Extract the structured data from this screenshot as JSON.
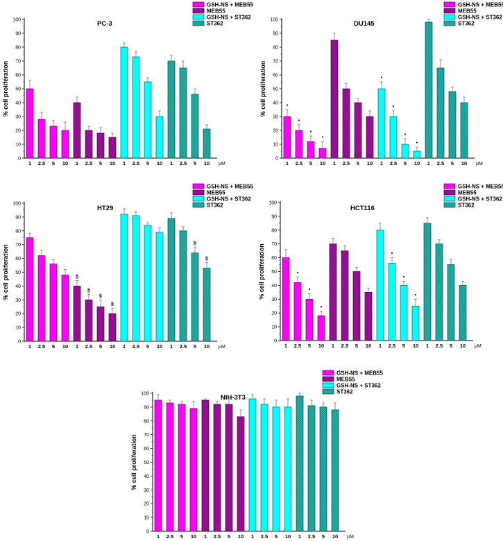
{
  "figure": {
    "ylabel": "% cell proliferation",
    "unit": "µM",
    "legend": [
      {
        "label": "GSH-NS + MEB55",
        "color": "#ff00ff",
        "pattern": "solid"
      },
      {
        "label": "MEB55",
        "color": "#a3109f",
        "pattern": "hatched"
      },
      {
        "label": "GSH-NS + ST362",
        "color": "#00ffff",
        "pattern": "solid"
      },
      {
        "label": "ST362",
        "color": "#1fb3ab",
        "pattern": "hatched"
      }
    ]
  },
  "chart_data": [
    {
      "type": "bar",
      "title": "PC-3",
      "xlabel": "µM",
      "ylabel": "% cell proliferation",
      "ylim": [
        0,
        100
      ],
      "yticks": [
        0,
        10,
        20,
        30,
        40,
        50,
        60,
        70,
        80,
        90,
        100
      ],
      "categories": [
        "1",
        "2.5",
        "5",
        "10"
      ],
      "legend_position": "top-right",
      "series": [
        {
          "name": "GSH-NS + MEB55",
          "values": [
            50,
            28,
            23,
            20
          ],
          "errors": [
            6,
            5,
            4,
            6
          ],
          "marks": [
            "",
            "",
            "",
            ""
          ]
        },
        {
          "name": "MEB55",
          "values": [
            40,
            20,
            18,
            15
          ],
          "errors": [
            4,
            3,
            4,
            3
          ],
          "marks": [
            "",
            "",
            "",
            ""
          ]
        },
        {
          "name": "GSH-NS + ST362",
          "values": [
            80,
            73,
            55,
            30
          ],
          "errors": [
            3,
            4,
            3,
            4
          ],
          "marks": [
            "",
            "",
            "",
            ""
          ]
        },
        {
          "name": "ST362",
          "values": [
            70,
            65,
            46,
            21
          ],
          "errors": [
            4,
            5,
            4,
            3
          ],
          "marks": [
            "",
            "",
            "",
            ""
          ]
        }
      ]
    },
    {
      "type": "bar",
      "title": "DU145",
      "xlabel": "µM",
      "ylabel": "% cell proliferation",
      "ylim": [
        0,
        100
      ],
      "yticks": [
        0,
        10,
        20,
        30,
        40,
        50,
        60,
        70,
        80,
        90,
        100
      ],
      "categories": [
        "1",
        "2.5",
        "5",
        "10"
      ],
      "legend_position": "top-right",
      "series": [
        {
          "name": "GSH-NS + MEB55",
          "values": [
            30,
            20,
            12,
            7
          ],
          "errors": [
            5,
            4,
            4,
            5
          ],
          "marks": [
            "*",
            "*",
            "*",
            "*"
          ]
        },
        {
          "name": "MEB55",
          "values": [
            85,
            50,
            40,
            30
          ],
          "errors": [
            5,
            4,
            3,
            4
          ],
          "marks": [
            "",
            "",
            "",
            ""
          ]
        },
        {
          "name": "GSH-NS + ST362",
          "values": [
            50,
            30,
            10,
            5
          ],
          "errors": [
            5,
            4,
            4,
            3
          ],
          "marks": [
            "*",
            "*",
            "*",
            "*"
          ]
        },
        {
          "name": "ST362",
          "values": [
            98,
            65,
            48,
            40
          ],
          "errors": [
            2,
            6,
            3,
            4
          ],
          "marks": [
            "",
            "",
            "",
            ""
          ]
        }
      ]
    },
    {
      "type": "bar",
      "title": "HT29",
      "xlabel": "µM",
      "ylabel": "% cell proliferation",
      "ylim": [
        0,
        100
      ],
      "yticks": [
        0,
        10,
        20,
        30,
        40,
        50,
        60,
        70,
        80,
        90,
        100
      ],
      "categories": [
        "1",
        "2.5",
        "5",
        "10"
      ],
      "legend_position": "top-right",
      "series": [
        {
          "name": "GSH-NS + MEB55",
          "values": [
            75,
            62,
            56,
            48
          ],
          "errors": [
            3,
            4,
            3,
            4
          ],
          "marks": [
            "",
            "",
            "",
            ""
          ]
        },
        {
          "name": "MEB55",
          "values": [
            40,
            30,
            25,
            20
          ],
          "errors": [
            4,
            4,
            5,
            4
          ],
          "marks": [
            "§",
            "§",
            "§",
            "§"
          ]
        },
        {
          "name": "GSH-NS + ST362",
          "values": [
            92,
            91,
            84,
            79
          ],
          "errors": [
            4,
            3,
            2,
            3
          ],
          "marks": [
            "",
            "",
            "",
            ""
          ]
        },
        {
          "name": "ST362",
          "values": [
            89,
            80,
            64,
            53
          ],
          "errors": [
            4,
            3,
            4,
            4
          ],
          "marks": [
            "",
            "",
            "§",
            "§"
          ]
        }
      ]
    },
    {
      "type": "bar",
      "title": "HCT116",
      "xlabel": "µM",
      "ylabel": "% cell proliferation",
      "ylim": [
        0,
        100
      ],
      "yticks": [
        0,
        10,
        20,
        30,
        40,
        50,
        60,
        70,
        80,
        90,
        100
      ],
      "categories": [
        "1",
        "2.5",
        "5",
        "10"
      ],
      "legend_position": "top-right",
      "series": [
        {
          "name": "GSH-NS + MEB55",
          "values": [
            60,
            42,
            30,
            18
          ],
          "errors": [
            6,
            4,
            4,
            3
          ],
          "marks": [
            "",
            "*",
            "*",
            "*"
          ]
        },
        {
          "name": "MEB55",
          "values": [
            70,
            65,
            50,
            35
          ],
          "errors": [
            4,
            4,
            3,
            3
          ],
          "marks": [
            "",
            "",
            "",
            ""
          ]
        },
        {
          "name": "GSH-NS + ST362",
          "values": [
            80,
            56,
            40,
            25
          ],
          "errors": [
            5,
            4,
            3,
            5
          ],
          "marks": [
            "",
            "*",
            "*",
            "*"
          ]
        },
        {
          "name": "ST362",
          "values": [
            85,
            70,
            55,
            40
          ],
          "errors": [
            4,
            3,
            4,
            3
          ],
          "marks": [
            "",
            "",
            "",
            ""
          ]
        }
      ]
    },
    {
      "type": "bar",
      "title": "NIH-3T3",
      "xlabel": "µM",
      "ylabel": "% cell proliferation",
      "ylim": [
        0,
        100
      ],
      "yticks": [
        0,
        10,
        20,
        30,
        40,
        50,
        60,
        70,
        80,
        90,
        100
      ],
      "categories": [
        "1",
        "2.5",
        "5",
        "10"
      ],
      "legend_position": "top-right",
      "series": [
        {
          "name": "GSH-NS + MEB55",
          "values": [
            95,
            93,
            92,
            89
          ],
          "errors": [
            4,
            2,
            2,
            5
          ],
          "marks": [
            "",
            "",
            "",
            ""
          ]
        },
        {
          "name": "MEB55",
          "values": [
            95,
            92,
            92,
            83
          ],
          "errors": [
            1,
            2,
            4,
            5
          ],
          "marks": [
            "",
            "",
            "",
            ""
          ]
        },
        {
          "name": "GSH-NS + ST362",
          "values": [
            96,
            92,
            90,
            90
          ],
          "errors": [
            3,
            4,
            5,
            6
          ],
          "marks": [
            "",
            "",
            "",
            ""
          ]
        },
        {
          "name": "ST362",
          "values": [
            98,
            91,
            90,
            88
          ],
          "errors": [
            2,
            4,
            3,
            5
          ],
          "marks": [
            "",
            "",
            "",
            ""
          ]
        }
      ]
    }
  ]
}
